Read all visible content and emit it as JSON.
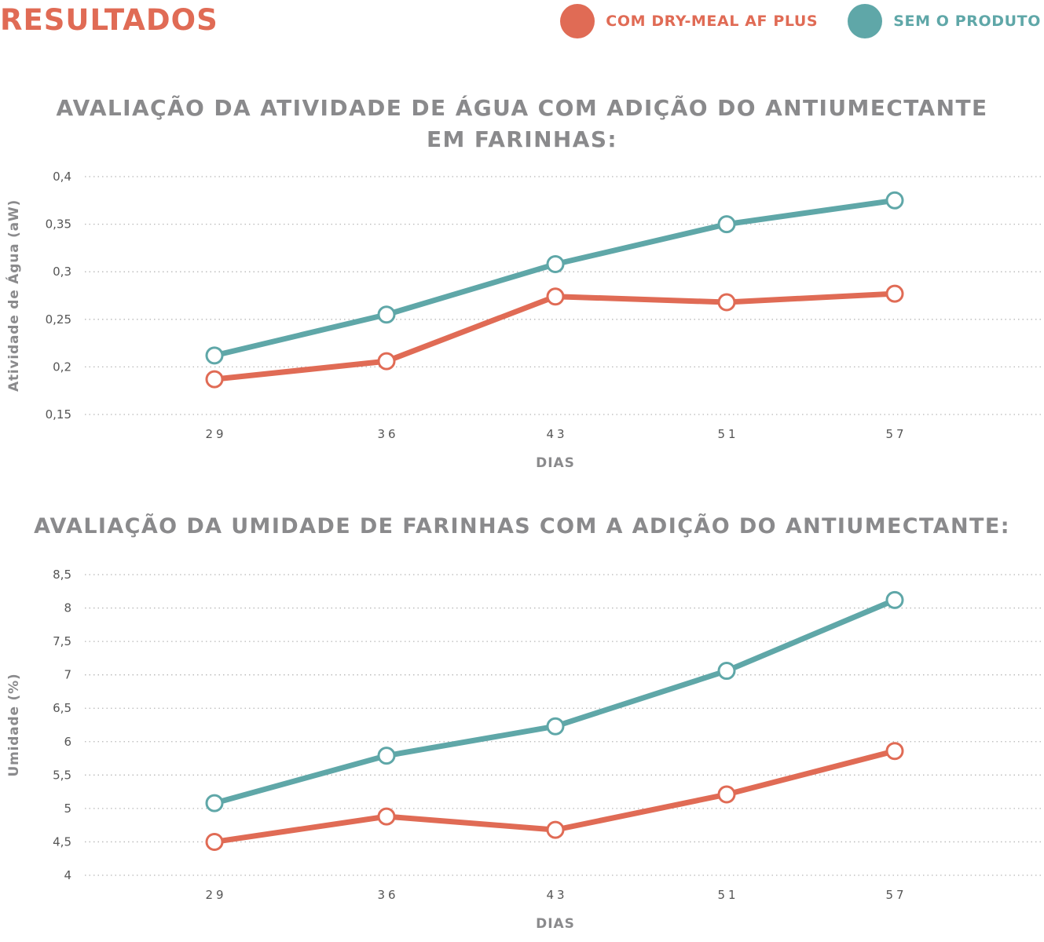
{
  "header": {
    "title": "RESULTADOS"
  },
  "legend": [
    {
      "label": "COM DRY-MEAL AF PLUS",
      "color": "#e06b55"
    },
    {
      "label": "SEM O PRODUTO",
      "color": "#5fa7a8"
    }
  ],
  "colors": {
    "com": "#e06b55",
    "sem": "#5fa7a8",
    "grid": "#b8b8b8",
    "text": "#8a8a8c"
  },
  "chart_data": [
    {
      "type": "line",
      "title_lines": [
        "AVALIAÇÃO DA ATIVIDADE DE ÁGUA COM ADIÇÃO DO ANTIUMECTANTE",
        "EM FARINHAS:"
      ],
      "xlabel": "DIAS",
      "ylabel": "Atividade de Água (aW)",
      "categories": [
        "29",
        "36",
        "43",
        "51",
        "57"
      ],
      "ylim": [
        0.15,
        0.4
      ],
      "yticks": [
        "0,15",
        "0,2",
        "0,25",
        "0,3",
        "0,35",
        "0,4"
      ],
      "ytick_values": [
        0.15,
        0.2,
        0.25,
        0.3,
        0.35,
        0.4
      ],
      "grid": "horizontal dotted",
      "series": [
        {
          "name": "COM DRY-MEAL AF PLUS",
          "color": "#e06b55",
          "values": [
            0.187,
            0.206,
            0.274,
            0.268,
            0.277
          ]
        },
        {
          "name": "SEM O PRODUTO",
          "color": "#5fa7a8",
          "values": [
            0.212,
            0.255,
            0.308,
            0.35,
            0.375
          ]
        }
      ]
    },
    {
      "type": "line",
      "title_lines": [
        "AVALIAÇÃO DA UMIDADE DE FARINHAS COM A ADIÇÃO DO ANTIUMECTANTE:"
      ],
      "xlabel": "DIAS",
      "ylabel": "Umidade (%)",
      "categories": [
        "29",
        "36",
        "43",
        "51",
        "57"
      ],
      "ylim": [
        4,
        8.5
      ],
      "yticks": [
        "4",
        "4,5",
        "5",
        "5,5",
        "6",
        "6,5",
        "7",
        "7,5",
        "8",
        "8,5"
      ],
      "ytick_values": [
        4,
        4.5,
        5,
        5.5,
        6,
        6.5,
        7,
        7.5,
        8,
        8.5
      ],
      "grid": "horizontal dotted",
      "series": [
        {
          "name": "COM DRY-MEAL AF PLUS",
          "color": "#e06b55",
          "values": [
            4.5,
            4.88,
            4.68,
            5.21,
            5.86
          ]
        },
        {
          "name": "SEM O PRODUTO",
          "color": "#5fa7a8",
          "values": [
            5.08,
            5.79,
            6.23,
            7.06,
            8.12
          ]
        }
      ]
    }
  ]
}
